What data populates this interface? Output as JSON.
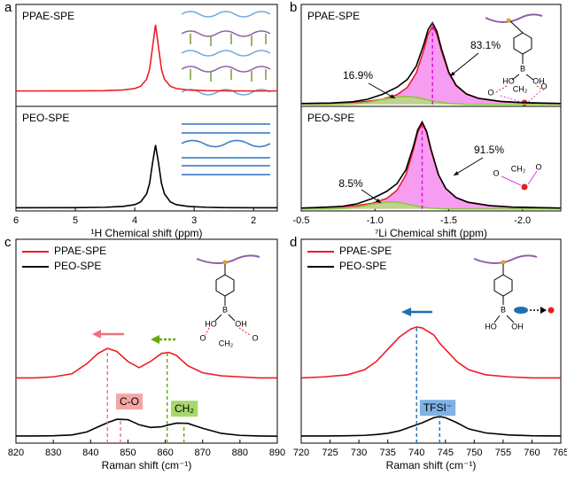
{
  "chart_data": [
    {
      "type": "line",
      "panel_label": "a",
      "label": "PPAE-SPE",
      "xlim": [
        6,
        1.6
      ],
      "ylim": [
        0,
        1
      ],
      "x": [
        6,
        5,
        4.5,
        4.2,
        4,
        3.9,
        3.8,
        3.75,
        3.7,
        3.65,
        3.6,
        3.55,
        3.5,
        3.4,
        3.3,
        3.1,
        2.8,
        2.4,
        2,
        1.6
      ],
      "series": [
        {
          "color": "#ee1c25",
          "values": [
            0.151,
            0.152,
            0.154,
            0.16,
            0.175,
            0.197,
            0.266,
            0.364,
            0.58,
            0.8,
            0.58,
            0.364,
            0.266,
            0.197,
            0.175,
            0.16,
            0.154,
            0.152,
            0.151,
            0.151
          ]
        }
      ]
    },
    {
      "type": "line",
      "label": "PEO-SPE",
      "xlabel": "¹H Chemical shift (ppm)",
      "xlim": [
        6,
        1.6
      ],
      "ylim": [
        0,
        1
      ],
      "xticks": [
        6,
        5,
        4,
        3,
        2
      ],
      "x": [
        6,
        5,
        4.5,
        4.2,
        4,
        3.9,
        3.8,
        3.75,
        3.7,
        3.65,
        3.6,
        3.55,
        3.5,
        3.4,
        3.3,
        3.1,
        2.8,
        2.4,
        2,
        1.6
      ],
      "series": [
        {
          "color": "#000000",
          "values": [
            0.03,
            0.031,
            0.035,
            0.043,
            0.06,
            0.086,
            0.163,
            0.264,
            0.46,
            0.63,
            0.46,
            0.264,
            0.163,
            0.086,
            0.06,
            0.043,
            0.035,
            0.031,
            0.03,
            0.03
          ]
        }
      ]
    },
    {
      "type": "line",
      "panel_label": "b",
      "label": "PPAE-SPE",
      "xlim": [
        -0.5,
        -2.26
      ],
      "ylim": [
        -0.02,
        1
      ],
      "x": [
        -0.5,
        -0.7,
        -0.85,
        -0.95,
        -1.05,
        -1.15,
        -1.22,
        -1.28,
        -1.33,
        -1.36,
        -1.39,
        -1.42,
        -1.45,
        -1.5,
        -1.55,
        -1.62,
        -1.7,
        -1.85,
        -2.0,
        -2.26
      ],
      "series": [
        {
          "color": "#ee1c25",
          "fill": "#f48cf0",
          "values": [
            0.008,
            0.013,
            0.021,
            0.031,
            0.051,
            0.096,
            0.171,
            0.313,
            0.54,
            0.702,
            0.78,
            0.702,
            0.54,
            0.313,
            0.187,
            0.104,
            0.061,
            0.029,
            0.017,
            0.008
          ]
        },
        {
          "color": "#8cc63f",
          "fill": "#b5dd7a",
          "values": [
            0,
            0,
            0.005,
            0.02,
            0.049,
            0.076,
            0.079,
            0.069,
            0.055,
            0.045,
            0.036,
            0.027,
            0.02,
            0.011,
            0.005,
            0,
            0,
            0,
            0,
            0
          ]
        },
        {
          "color": "#000000",
          "values": [
            0.008,
            0.013,
            0.026,
            0.051,
            0.1,
            0.172,
            0.25,
            0.382,
            0.595,
            0.747,
            0.816,
            0.729,
            0.56,
            0.324,
            0.192,
            0.104,
            0.061,
            0.029,
            0.017,
            0.008
          ]
        }
      ],
      "markers": [
        {
          "x": -1.39,
          "color": "#e000e0",
          "series": 2
        }
      ],
      "annotations": [
        {
          "text": "83.1%"
        },
        {
          "text": "16.9%"
        }
      ],
      "inset_labels": [
        "B",
        "HO",
        "OH",
        "O",
        "CH₂",
        "O"
      ]
    },
    {
      "type": "line",
      "label": "PEO-SPE",
      "xlabel": "⁷Li Chemical shift (ppm)",
      "xlim": [
        -0.5,
        -2.26
      ],
      "ylim": [
        -0.02,
        1
      ],
      "xticks": [
        -0.5,
        {
          "value": -1,
          "label": "-1.0"
        },
        -1.5,
        {
          "value": -2,
          "label": "-2.0"
        }
      ],
      "x": [
        -0.5,
        -0.63,
        -0.78,
        -0.88,
        -0.98,
        -1.08,
        -1.15,
        -1.21,
        -1.26,
        -1.29,
        -1.32,
        -1.35,
        -1.38,
        -1.43,
        -1.48,
        -1.55,
        -1.63,
        -1.78,
        -1.93,
        -2.26
      ],
      "series": [
        {
          "color": "#ee1c25",
          "fill": "#f48cf0",
          "values": [
            0.008,
            0.014,
            0.022,
            0.033,
            0.054,
            0.102,
            0.182,
            0.333,
            0.574,
            0.747,
            0.83,
            0.747,
            0.574,
            0.333,
            0.199,
            0.11,
            0.065,
            0.031,
            0.017,
            0.008
          ]
        },
        {
          "color": "#8cc63f",
          "fill": "#b5dd7a",
          "values": [
            0,
            0,
            0.003,
            0.017,
            0.046,
            0.069,
            0.065,
            0.049,
            0.033,
            0.024,
            0.017,
            0.011,
            0.007,
            0.003,
            0,
            0,
            0,
            0,
            0,
            0
          ]
        },
        {
          "color": "#000000",
          "values": [
            0.008,
            0.014,
            0.025,
            0.05,
            0.1,
            0.171,
            0.247,
            0.382,
            0.607,
            0.771,
            0.847,
            0.758,
            0.581,
            0.336,
            0.199,
            0.11,
            0.065,
            0.031,
            0.017,
            0.008
          ]
        }
      ],
      "markers": [
        {
          "x": -1.32,
          "color": "#e000e0",
          "series": 2
        }
      ],
      "annotations": [
        {
          "text": "91.5%"
        },
        {
          "text": "8.5%"
        }
      ],
      "inset_labels": [
        "O",
        "CH₂",
        "O"
      ]
    },
    {
      "type": "line",
      "panel_label": "c",
      "xlabel": "Raman shift (cm⁻¹)",
      "legend": true,
      "xlim": [
        820,
        890
      ],
      "ylim": [
        0,
        1
      ],
      "xticks": [
        820,
        830,
        840,
        850,
        860,
        870,
        880,
        890
      ],
      "x": [
        820,
        825,
        830,
        835,
        839,
        842,
        844.5,
        847,
        850,
        853,
        856,
        859,
        861,
        863,
        866,
        870,
        875,
        880,
        885,
        890
      ],
      "series": [
        {
          "name": "PPAE-SPE",
          "color": "#ee1c25",
          "values": [
            0.32,
            0.32,
            0.325,
            0.34,
            0.39,
            0.44,
            0.465,
            0.45,
            0.4,
            0.37,
            0.4,
            0.44,
            0.445,
            0.43,
            0.38,
            0.345,
            0.33,
            0.325,
            0.32,
            0.32
          ]
        },
        {
          "name": "PEO-SPE",
          "color": "#000000",
          "values": [
            0.035,
            0.035,
            0.036,
            0.04,
            0.055,
            0.08,
            0.1,
            0.117,
            0.115,
            0.09,
            0.077,
            0.08,
            0.09,
            0.098,
            0.097,
            0.073,
            0.048,
            0.038,
            0.035,
            0.034
          ]
        }
      ],
      "markers": [
        {
          "x": 844.5,
          "color": "#f07080",
          "series": 0
        },
        {
          "x": 848,
          "color": "#f07080",
          "series": 1
        },
        {
          "x": 860.5,
          "color": "#66aa00",
          "series": 0
        },
        {
          "x": 865,
          "color": "#66aa00",
          "series": 1
        }
      ],
      "annotations": [
        {
          "text": "C-O",
          "color": "#f4a6a6"
        },
        {
          "text": "CH₂",
          "color": "#a8d86a"
        }
      ],
      "inset_labels": [
        "B",
        "HO",
        "OH",
        "O",
        "CH₂",
        "O"
      ]
    },
    {
      "type": "line",
      "panel_label": "d",
      "xlabel": "Raman shift (cm⁻¹)",
      "legend": true,
      "xlim": [
        720,
        765
      ],
      "ylim": [
        0,
        1
      ],
      "xticks": [
        720,
        725,
        730,
        735,
        740,
        745,
        750,
        755,
        760,
        765
      ],
      "x": [
        720,
        724,
        728,
        731,
        733,
        735,
        737,
        739,
        740,
        741,
        743,
        744,
        745,
        747,
        749,
        752,
        756,
        760,
        765
      ],
      "series": [
        {
          "name": "PPAE-SPE",
          "color": "#ee1c25",
          "values": [
            0.32,
            0.325,
            0.335,
            0.36,
            0.4,
            0.46,
            0.52,
            0.56,
            0.57,
            0.565,
            0.53,
            0.49,
            0.46,
            0.4,
            0.36,
            0.335,
            0.325,
            0.32,
            0.32
          ]
        },
        {
          "name": "PEO-SPE",
          "color": "#000000",
          "values": [
            0.035,
            0.035,
            0.036,
            0.038,
            0.042,
            0.048,
            0.06,
            0.08,
            0.09,
            0.1,
            0.125,
            0.13,
            0.125,
            0.1,
            0.07,
            0.05,
            0.04,
            0.036,
            0.035
          ]
        }
      ],
      "markers": [
        {
          "x": 740,
          "color": "#1f6fb5",
          "series": 0
        },
        {
          "x": 744,
          "color": "#1f6fb5",
          "series": 1
        }
      ],
      "annotations": [
        {
          "text": "TFSI⁻",
          "color": "#7fb2e5"
        }
      ],
      "inset_labels": [
        "B",
        "HO",
        "OH"
      ]
    }
  ]
}
